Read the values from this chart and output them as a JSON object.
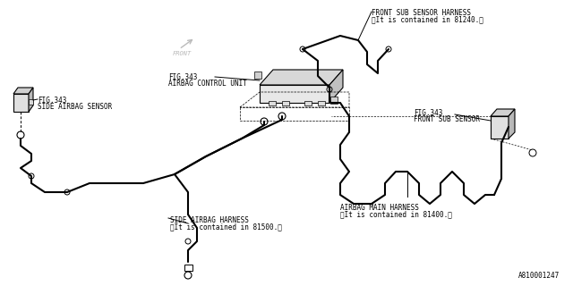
{
  "bg_color": "#ffffff",
  "line_color": "#000000",
  "watermark": "A810001247",
  "labels": {
    "front_sub_sensor_harness_l1": "FRONT SUB SENSOR HARNESS",
    "front_sub_sensor_harness_l2": "〈It is contained in 81240.〉",
    "airbag_control_unit_l1": "FIG.343",
    "airbag_control_unit_l2": "AIRBAG CONTROL UNIT",
    "side_airbag_sensor_l1": "FIG.343",
    "side_airbag_sensor_l2": "SIDE AIRBAG SENSOR",
    "front_sub_sensor_l1": "FIG.343",
    "front_sub_sensor_l2": "FRONT SUB SENSOR",
    "airbag_main_harness_l1": "AIRBAG MAIN HARNESS",
    "airbag_main_harness_l2": "〈It is contained in 81400.〉",
    "side_airbag_harness_l1": "SIDE AIRBAG HARNESS",
    "side_airbag_harness_l2": "〈It is contained in 81500.〉",
    "front_label": "FRONT"
  },
  "figsize": [
    6.4,
    3.2
  ],
  "dpi": 100
}
